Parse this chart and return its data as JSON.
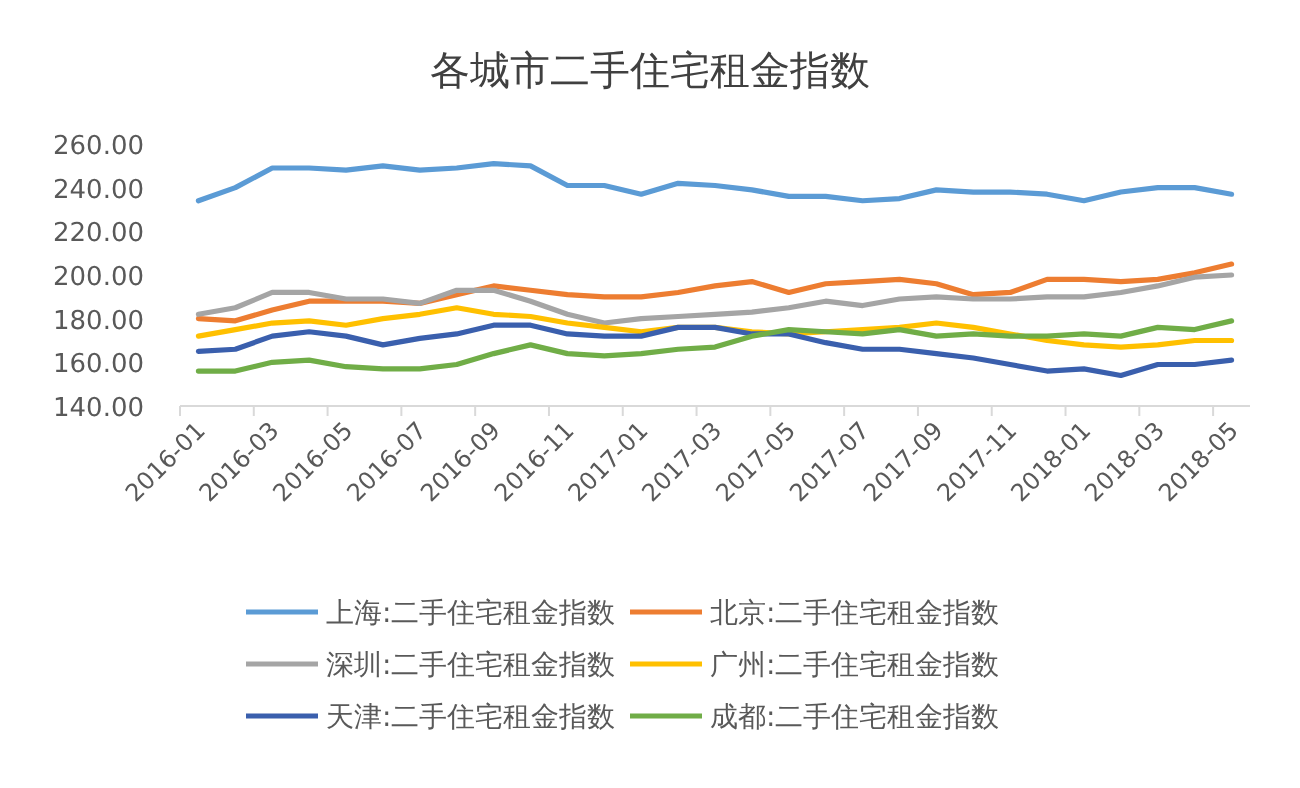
{
  "chart_data": {
    "type": "line",
    "title": "各城市二手住宅租金指数",
    "categories": [
      "2016-01",
      null,
      "2016-03",
      null,
      "2016-05",
      null,
      "2016-07",
      null,
      "2016-09",
      null,
      "2016-11",
      null,
      "2017-01",
      null,
      "2017-03",
      null,
      "2017-05",
      null,
      "2017-07",
      null,
      "2017-09",
      null,
      "2017-11",
      null,
      "2018-01",
      null,
      "2018-03",
      null,
      "2018-05"
    ],
    "ylim": [
      140,
      260
    ],
    "yticks": [
      {
        "value": 140,
        "label": "140.00"
      },
      {
        "value": 160,
        "label": "160.00"
      },
      {
        "value": 180,
        "label": "180.00"
      },
      {
        "value": 200,
        "label": "200.00"
      },
      {
        "value": 220,
        "label": "220.00"
      },
      {
        "value": 240,
        "label": "240.00"
      },
      {
        "value": 260,
        "label": "260.00"
      }
    ],
    "grid": false,
    "legend": "bottom",
    "series": [
      {
        "name": "上海:二手住宅租金指数",
        "color": "#5b9bd5",
        "values": [
          234,
          240,
          249,
          249,
          248,
          250,
          248,
          249,
          251,
          250,
          241,
          241,
          237,
          242,
          241,
          239,
          236,
          236,
          234,
          235,
          239,
          238,
          238,
          237,
          234,
          238,
          240,
          240,
          237
        ]
      },
      {
        "name": "北京:二手住宅租金指数",
        "color": "#ed7d31",
        "values": [
          180,
          179,
          184,
          188,
          188,
          188,
          187,
          191,
          195,
          193,
          191,
          190,
          190,
          192,
          195,
          197,
          192,
          196,
          197,
          198,
          196,
          191,
          192,
          198,
          198,
          197,
          198,
          201,
          205
        ]
      },
      {
        "name": "深圳:二手住宅租金指数",
        "color": "#a5a5a5",
        "values": [
          182,
          185,
          192,
          192,
          189,
          189,
          187,
          193,
          193,
          188,
          182,
          178,
          180,
          181,
          182,
          183,
          185,
          188,
          186,
          189,
          190,
          189,
          189,
          190,
          190,
          192,
          195,
          199,
          200
        ]
      },
      {
        "name": "广州:二手住宅租金指数",
        "color": "#ffc000",
        "values": [
          172,
          175,
          178,
          179,
          177,
          180,
          182,
          185,
          182,
          181,
          178,
          176,
          174,
          176,
          176,
          174,
          173,
          174,
          175,
          176,
          178,
          176,
          173,
          170,
          168,
          167,
          168,
          170,
          170
        ]
      },
      {
        "name": "天津:二手住宅租金指数",
        "color": "#3a5fad",
        "values": [
          165,
          166,
          172,
          174,
          172,
          168,
          171,
          173,
          177,
          177,
          173,
          172,
          172,
          176,
          176,
          173,
          173,
          169,
          166,
          166,
          164,
          162,
          159,
          156,
          157,
          154,
          159,
          159,
          161
        ]
      },
      {
        "name": "成都:二手住宅租金指数",
        "color": "#70ad47",
        "values": [
          156,
          156,
          160,
          161,
          158,
          157,
          157,
          159,
          164,
          168,
          164,
          163,
          164,
          166,
          167,
          172,
          175,
          174,
          173,
          175,
          172,
          173,
          172,
          172,
          173,
          172,
          176,
          175,
          179
        ]
      }
    ]
  }
}
